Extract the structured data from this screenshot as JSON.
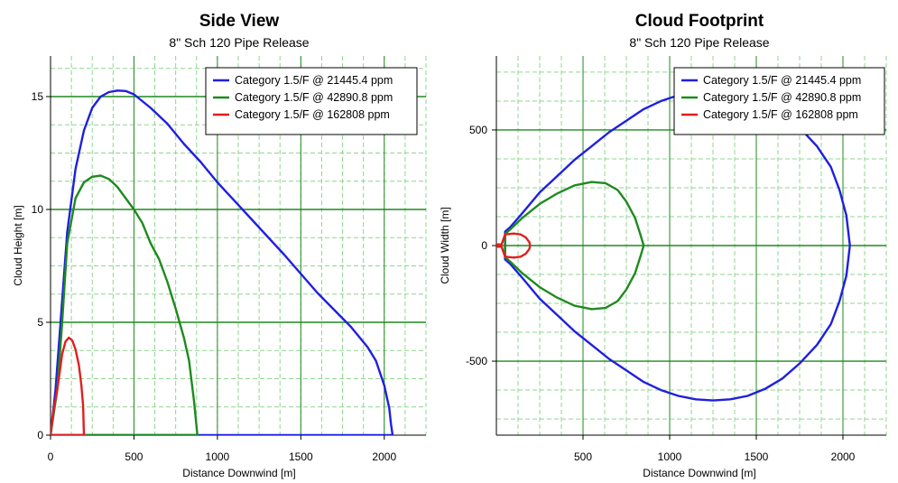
{
  "colors": {
    "blue": "#1f1fe0",
    "green": "#1f8a1f",
    "red": "#e01f1f",
    "major_grid": "#1f8a1f",
    "minor_grid": "#8fd68f"
  },
  "chart_data": [
    {
      "type": "line",
      "title": "Side View",
      "subtitle": "8\" Sch 120 Pipe Release",
      "xlabel": "Distance Downwind [m]",
      "ylabel": "Cloud Height [m]",
      "xlim": [
        0,
        2250
      ],
      "ylim": [
        0,
        16.8
      ],
      "xticks": [
        0,
        500,
        1000,
        1500,
        2000
      ],
      "yticks": [
        0,
        5,
        10,
        15
      ],
      "legend_position": "top-right",
      "series": [
        {
          "name": "Category 1.5/F @ 21445.4 ppm",
          "color": "#1f1fe0",
          "points": [
            [
              0,
              0
            ],
            [
              30,
              2
            ],
            [
              60,
              5
            ],
            [
              100,
              9
            ],
            [
              150,
              11.8
            ],
            [
              200,
              13.5
            ],
            [
              250,
              14.5
            ],
            [
              300,
              15
            ],
            [
              350,
              15.2
            ],
            [
              400,
              15.27
            ],
            [
              450,
              15.25
            ],
            [
              500,
              15.1
            ],
            [
              600,
              14.5
            ],
            [
              700,
              13.8
            ],
            [
              800,
              12.9
            ],
            [
              900,
              12.1
            ],
            [
              1000,
              11.2
            ],
            [
              1200,
              9.6
            ],
            [
              1400,
              8.0
            ],
            [
              1600,
              6.3
            ],
            [
              1800,
              4.8
            ],
            [
              1900,
              3.9
            ],
            [
              1950,
              3.3
            ],
            [
              2000,
              2.2
            ],
            [
              2030,
              1.2
            ],
            [
              2040,
              0.5
            ],
            [
              2050,
              0
            ],
            [
              1000,
              0
            ],
            [
              0,
              0
            ]
          ]
        },
        {
          "name": "Category 1.5/F @ 42890.8 ppm",
          "color": "#1f8a1f",
          "points": [
            [
              0,
              0
            ],
            [
              40,
              2
            ],
            [
              70,
              5
            ],
            [
              100,
              8.5
            ],
            [
              150,
              10.5
            ],
            [
              200,
              11.2
            ],
            [
              250,
              11.45
            ],
            [
              300,
              11.5
            ],
            [
              350,
              11.35
            ],
            [
              400,
              11
            ],
            [
              450,
              10.5
            ],
            [
              500,
              10
            ],
            [
              550,
              9.4
            ],
            [
              600,
              8.5
            ],
            [
              650,
              7.8
            ],
            [
              700,
              6.8
            ],
            [
              750,
              5.6
            ],
            [
              800,
              4.3
            ],
            [
              830,
              3.3
            ],
            [
              860,
              1.5
            ],
            [
              880,
              0
            ],
            [
              440,
              0
            ],
            [
              0,
              0
            ]
          ]
        },
        {
          "name": "Category 1.5/F @ 162808 ppm",
          "color": "#e01f1f",
          "points": [
            [
              0,
              0
            ],
            [
              20,
              1.2
            ],
            [
              40,
              2
            ],
            [
              55,
              2.8
            ],
            [
              70,
              3.6
            ],
            [
              90,
              4.15
            ],
            [
              110,
              4.32
            ],
            [
              130,
              4.2
            ],
            [
              150,
              3.8
            ],
            [
              170,
              3.1
            ],
            [
              185,
              2.2
            ],
            [
              195,
              1.3
            ],
            [
              200,
              0
            ],
            [
              100,
              0
            ],
            [
              0,
              0
            ]
          ]
        }
      ]
    },
    {
      "type": "line",
      "title": "Cloud Footprint",
      "subtitle": "8\" Sch 120 Pipe Release",
      "xlabel": "Distance Downwind [m]",
      "ylabel": "Cloud Width [m]",
      "xlim": [
        0,
        2250
      ],
      "ylim": [
        -820,
        820
      ],
      "xticks": [
        500,
        1000,
        1500,
        2000
      ],
      "yticks": [
        -500,
        0,
        500
      ],
      "legend_position": "top-right",
      "series": [
        {
          "name": "Category 1.5/F @ 21445.4 ppm",
          "color": "#1f1fe0",
          "points": [
            [
              50,
              0
            ],
            [
              50,
              60
            ],
            [
              80,
              80
            ],
            [
              150,
              140
            ],
            [
              250,
              230
            ],
            [
              350,
              300
            ],
            [
              450,
              370
            ],
            [
              550,
              430
            ],
            [
              650,
              490
            ],
            [
              750,
              540
            ],
            [
              850,
              590
            ],
            [
              950,
              625
            ],
            [
              1050,
              650
            ],
            [
              1150,
              665
            ],
            [
              1250,
              670
            ],
            [
              1350,
              665
            ],
            [
              1450,
              650
            ],
            [
              1550,
              620
            ],
            [
              1650,
              575
            ],
            [
              1750,
              510
            ],
            [
              1850,
              430
            ],
            [
              1930,
              340
            ],
            [
              1980,
              240
            ],
            [
              2020,
              130
            ],
            [
              2040,
              0
            ],
            [
              2020,
              -130
            ],
            [
              1980,
              -240
            ],
            [
              1930,
              -340
            ],
            [
              1850,
              -430
            ],
            [
              1750,
              -510
            ],
            [
              1650,
              -575
            ],
            [
              1550,
              -620
            ],
            [
              1450,
              -650
            ],
            [
              1350,
              -665
            ],
            [
              1250,
              -670
            ],
            [
              1150,
              -665
            ],
            [
              1050,
              -650
            ],
            [
              950,
              -625
            ],
            [
              850,
              -590
            ],
            [
              750,
              -540
            ],
            [
              650,
              -490
            ],
            [
              550,
              -430
            ],
            [
              450,
              -370
            ],
            [
              350,
              -300
            ],
            [
              250,
              -230
            ],
            [
              150,
              -140
            ],
            [
              80,
              -80
            ],
            [
              50,
              -60
            ],
            [
              50,
              0
            ]
          ]
        },
        {
          "name": "Category 1.5/F @ 42890.8 ppm",
          "color": "#1f8a1f",
          "points": [
            [
              50,
              0
            ],
            [
              50,
              50
            ],
            [
              80,
              70
            ],
            [
              150,
              120
            ],
            [
              250,
              180
            ],
            [
              350,
              225
            ],
            [
              450,
              260
            ],
            [
              550,
              275
            ],
            [
              630,
              270
            ],
            [
              700,
              240
            ],
            [
              750,
              190
            ],
            [
              800,
              120
            ],
            [
              830,
              50
            ],
            [
              850,
              0
            ],
            [
              830,
              -50
            ],
            [
              800,
              -120
            ],
            [
              750,
              -190
            ],
            [
              700,
              -240
            ],
            [
              630,
              -270
            ],
            [
              550,
              -275
            ],
            [
              450,
              -260
            ],
            [
              350,
              -225
            ],
            [
              250,
              -180
            ],
            [
              150,
              -120
            ],
            [
              80,
              -70
            ],
            [
              50,
              -50
            ],
            [
              50,
              0
            ]
          ]
        },
        {
          "name": "Category 1.5/F @ 162808 ppm",
          "color": "#e01f1f",
          "points": [
            [
              0,
              5
            ],
            [
              30,
              5
            ],
            [
              50,
              48
            ],
            [
              100,
              52
            ],
            [
              140,
              48
            ],
            [
              170,
              35
            ],
            [
              190,
              15
            ],
            [
              195,
              0
            ],
            [
              190,
              -15
            ],
            [
              170,
              -35
            ],
            [
              140,
              -48
            ],
            [
              100,
              -52
            ],
            [
              50,
              -48
            ],
            [
              30,
              -5
            ],
            [
              0,
              -5
            ]
          ]
        }
      ]
    }
  ]
}
